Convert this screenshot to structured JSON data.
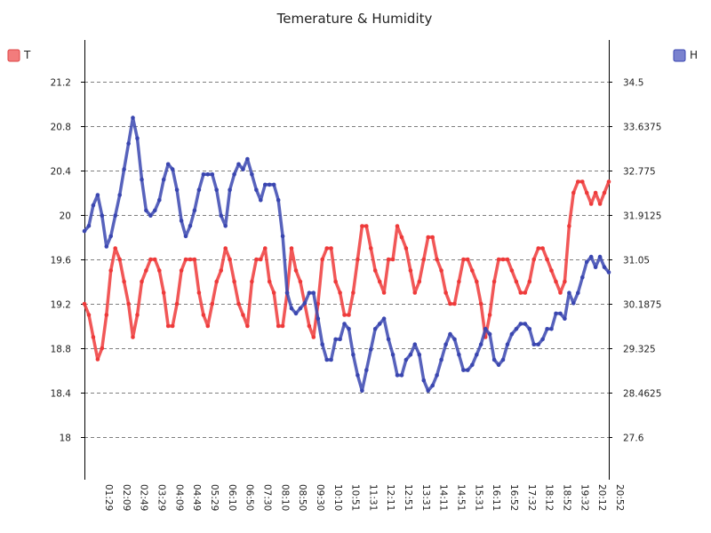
{
  "chart_data": {
    "type": "line",
    "title": "Temerature & Humidity",
    "grid": "horizontal dashed",
    "legend": [
      "top-left",
      "top-right"
    ],
    "left_axis": {
      "ticks": [
        "18",
        "18.4",
        "18.8",
        "19.2",
        "19.6",
        "20",
        "20.4",
        "20.8",
        "21.2"
      ],
      "ylim": [
        17.6,
        21.6
      ]
    },
    "right_axis": {
      "ticks": [
        "27.6",
        "28.4625",
        "29.325",
        "30.1875",
        "31.05",
        "31.9125",
        "32.775",
        "33.6375",
        "34.5"
      ],
      "ylim": [
        26.7375,
        35.3625
      ]
    },
    "x_tick_labels": [
      "01:29",
      "02:09",
      "02:49",
      "03:29",
      "04:09",
      "04:49",
      "05:29",
      "06:10",
      "06:50",
      "07:30",
      "08:10",
      "08:50",
      "09:30",
      "10:10",
      "10:51",
      "11:31",
      "12:11",
      "12:51",
      "13:31",
      "14:11",
      "14:51",
      "15:31",
      "16:11",
      "16:52",
      "17:32",
      "18:12",
      "18:52",
      "19:32",
      "20:12",
      "20:52"
    ],
    "series": [
      {
        "name": "T",
        "axis": "left",
        "color": "#ee3a3a",
        "values": [
          19.2,
          19.1,
          18.9,
          18.7,
          18.8,
          19.1,
          19.5,
          19.7,
          19.6,
          19.4,
          19.2,
          18.9,
          19.1,
          19.4,
          19.5,
          19.6,
          19.6,
          19.5,
          19.3,
          19.0,
          19.0,
          19.2,
          19.5,
          19.6,
          19.6,
          19.6,
          19.3,
          19.1,
          19.0,
          19.2,
          19.4,
          19.5,
          19.7,
          19.6,
          19.4,
          19.2,
          19.1,
          19.0,
          19.4,
          19.6,
          19.6,
          19.7,
          19.4,
          19.3,
          19.0,
          19.0,
          19.3,
          19.7,
          19.5,
          19.4,
          19.2,
          19.0,
          18.9,
          19.2,
          19.6,
          19.7,
          19.7,
          19.4,
          19.3,
          19.1,
          19.1,
          19.3,
          19.6,
          19.9,
          19.9,
          19.7,
          19.5,
          19.4,
          19.3,
          19.6,
          19.6,
          19.9,
          19.8,
          19.7,
          19.5,
          19.3,
          19.4,
          19.6,
          19.8,
          19.8,
          19.6,
          19.5,
          19.3,
          19.2,
          19.2,
          19.4,
          19.6,
          19.6,
          19.5,
          19.4,
          19.2,
          18.9,
          19.1,
          19.4,
          19.6,
          19.6,
          19.6,
          19.5,
          19.4,
          19.3,
          19.3,
          19.4,
          19.6,
          19.7,
          19.7,
          19.6,
          19.5,
          19.4,
          19.3,
          19.4,
          19.9,
          20.2,
          20.3,
          20.3,
          20.2,
          20.1,
          20.2,
          20.1,
          20.2,
          20.3
        ]
      },
      {
        "name": "H",
        "axis": "right",
        "color": "#3a46b0",
        "values": [
          31.6,
          31.7,
          32.1,
          32.3,
          31.9,
          31.3,
          31.5,
          31.9,
          32.3,
          32.8,
          33.3,
          33.8,
          33.4,
          32.6,
          32.0,
          31.9,
          32.0,
          32.2,
          32.6,
          32.9,
          32.8,
          32.4,
          31.8,
          31.5,
          31.7,
          32.0,
          32.4,
          32.7,
          32.7,
          32.7,
          32.4,
          31.9,
          31.7,
          32.4,
          32.7,
          32.9,
          32.8,
          33.0,
          32.7,
          32.4,
          32.2,
          32.5,
          32.5,
          32.5,
          32.2,
          31.5,
          30.4,
          30.1,
          30.0,
          30.1,
          30.2,
          30.4,
          30.4,
          29.9,
          29.4,
          29.1,
          29.1,
          29.5,
          29.5,
          29.8,
          29.7,
          29.2,
          28.8,
          28.5,
          28.9,
          29.3,
          29.7,
          29.8,
          29.9,
          29.5,
          29.2,
          28.8,
          28.8,
          29.1,
          29.2,
          29.4,
          29.2,
          28.7,
          28.5,
          28.6,
          28.8,
          29.1,
          29.4,
          29.6,
          29.5,
          29.2,
          28.9,
          28.9,
          29.0,
          29.2,
          29.4,
          29.7,
          29.6,
          29.1,
          29.0,
          29.1,
          29.4,
          29.6,
          29.7,
          29.8,
          29.8,
          29.7,
          29.4,
          29.4,
          29.5,
          29.7,
          29.7,
          30.0,
          30.0,
          29.9,
          30.4,
          30.2,
          30.4,
          30.7,
          31.0,
          31.1,
          30.9,
          31.1,
          30.9,
          30.8
        ]
      }
    ]
  }
}
